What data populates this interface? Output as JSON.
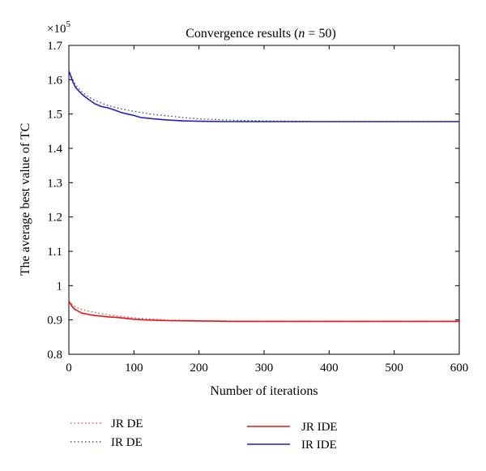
{
  "chart_data": {
    "type": "line",
    "title_prefix": "Convergence results (",
    "title_var": "n",
    "title_suffix": " = 50)",
    "xlabel": "Number of iterations",
    "ylabel": "The average best value of TC",
    "y_multiplier_base": "×10",
    "y_multiplier_exp": "5",
    "xlim": [
      0,
      600
    ],
    "ylim": [
      0.8,
      1.7
    ],
    "x_ticks": [
      0,
      100,
      200,
      300,
      400,
      500,
      600
    ],
    "x_tick_labels": [
      "0",
      "100",
      "200",
      "300",
      "400",
      "500",
      "600"
    ],
    "y_ticks": [
      0.8,
      0.9,
      1.0,
      1.1,
      1.2,
      1.3,
      1.4,
      1.5,
      1.6,
      1.7
    ],
    "y_tick_labels": [
      "0.8",
      "0.9",
      "1",
      "1.1",
      "1.2",
      "1.3",
      "1.4",
      "1.5",
      "1.6",
      "1.7"
    ],
    "grid": false,
    "legend_position": "below plot",
    "series": [
      {
        "name": "JR DE",
        "color": "#e8323c",
        "style": "dotted",
        "x": [
          0,
          5,
          10,
          20,
          30,
          40,
          60,
          80,
          100,
          150,
          200,
          250,
          300,
          400,
          500,
          600
        ],
        "y": [
          0.955,
          0.945,
          0.938,
          0.93,
          0.926,
          0.922,
          0.915,
          0.91,
          0.906,
          0.9,
          0.898,
          0.897,
          0.896,
          0.896,
          0.896,
          0.896
        ]
      },
      {
        "name": "IR DE",
        "color": "#333366",
        "style": "dotted",
        "x": [
          0,
          5,
          10,
          20,
          30,
          40,
          50,
          60,
          80,
          100,
          125,
          150,
          175,
          200,
          250,
          300,
          400,
          500,
          600
        ],
        "y": [
          1.63,
          1.605,
          1.585,
          1.565,
          1.55,
          1.54,
          1.532,
          1.525,
          1.515,
          1.508,
          1.5,
          1.495,
          1.49,
          1.486,
          1.482,
          1.48,
          1.478,
          1.478,
          1.478
        ]
      },
      {
        "name": "JR IDE",
        "color": "#ee1111",
        "style": "solid",
        "x": [
          0,
          3,
          6,
          10,
          15,
          20,
          30,
          40,
          50,
          60,
          70,
          80,
          100,
          120,
          150,
          200,
          250,
          300,
          400,
          500,
          600
        ],
        "y": [
          0.955,
          0.945,
          0.937,
          0.93,
          0.925,
          0.92,
          0.916,
          0.913,
          0.911,
          0.909,
          0.908,
          0.906,
          0.902,
          0.9,
          0.898,
          0.897,
          0.896,
          0.896,
          0.896,
          0.896,
          0.896
        ]
      },
      {
        "name": "IR IDE",
        "color": "#1f1fcc",
        "style": "solid",
        "x": [
          0,
          3,
          6,
          10,
          15,
          20,
          25,
          30,
          40,
          50,
          60,
          70,
          80,
          90,
          100,
          110,
          130,
          150,
          175,
          200,
          250,
          300,
          400,
          500,
          600
        ],
        "y": [
          1.625,
          1.61,
          1.595,
          1.578,
          1.568,
          1.558,
          1.55,
          1.543,
          1.53,
          1.522,
          1.518,
          1.512,
          1.505,
          1.5,
          1.496,
          1.49,
          1.486,
          1.483,
          1.48,
          1.479,
          1.478,
          1.478,
          1.478,
          1.478,
          1.478
        ]
      }
    ]
  }
}
